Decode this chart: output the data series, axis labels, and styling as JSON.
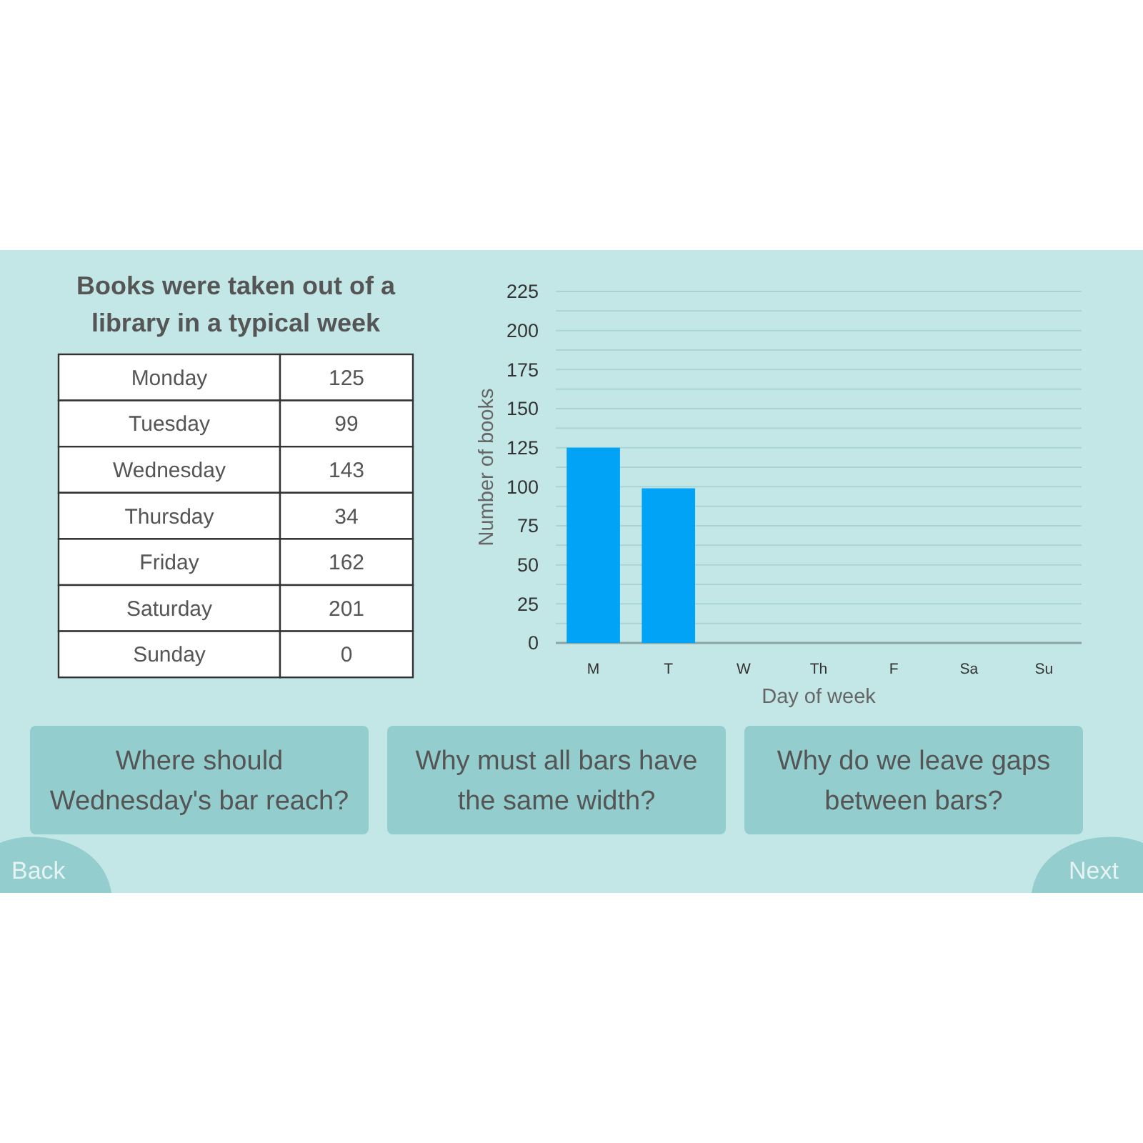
{
  "chart_data": [
    {
      "type": "other",
      "title": "Books were taken out of a library in a typical week",
      "categories": [
        "Monday",
        "Tuesday",
        "Wednesday",
        "Thursday",
        "Friday",
        "Saturday",
        "Sunday"
      ],
      "values": [
        125,
        99,
        143,
        34,
        162,
        201,
        0
      ],
      "data_labels": true
    },
    {
      "type": "bar",
      "categories": [
        "M",
        "T",
        "W",
        "Th",
        "F",
        "Sa",
        "Su"
      ],
      "values": [
        125,
        99,
        null,
        null,
        null,
        null,
        null
      ],
      "color": "#00a3f5",
      "xlabel": "Day of week",
      "ylabel": "Number of books",
      "ylim": [
        0,
        225
      ],
      "yticks": [
        0,
        {
          "value": 12.5,
          "label": null
        },
        25,
        {
          "value": 37.5,
          "label": null
        },
        50,
        {
          "value": 62.5,
          "label": null
        },
        75,
        {
          "value": 87.5,
          "label": null
        },
        100,
        {
          "value": 112.5,
          "label": null
        },
        125,
        {
          "value": 137.5,
          "label": null
        },
        150,
        {
          "value": 162.5,
          "label": null
        },
        175,
        {
          "value": 187.5,
          "label": null
        },
        200,
        {
          "value": 212.5,
          "label": null
        },
        225
      ],
      "grid": "y",
      "annotations": [
        "Where should Wednesday's bar reach?",
        "Why must all bars have the same width?",
        "Why do we leave gaps between bars?",
        "Back",
        "Next"
      ]
    }
  ]
}
